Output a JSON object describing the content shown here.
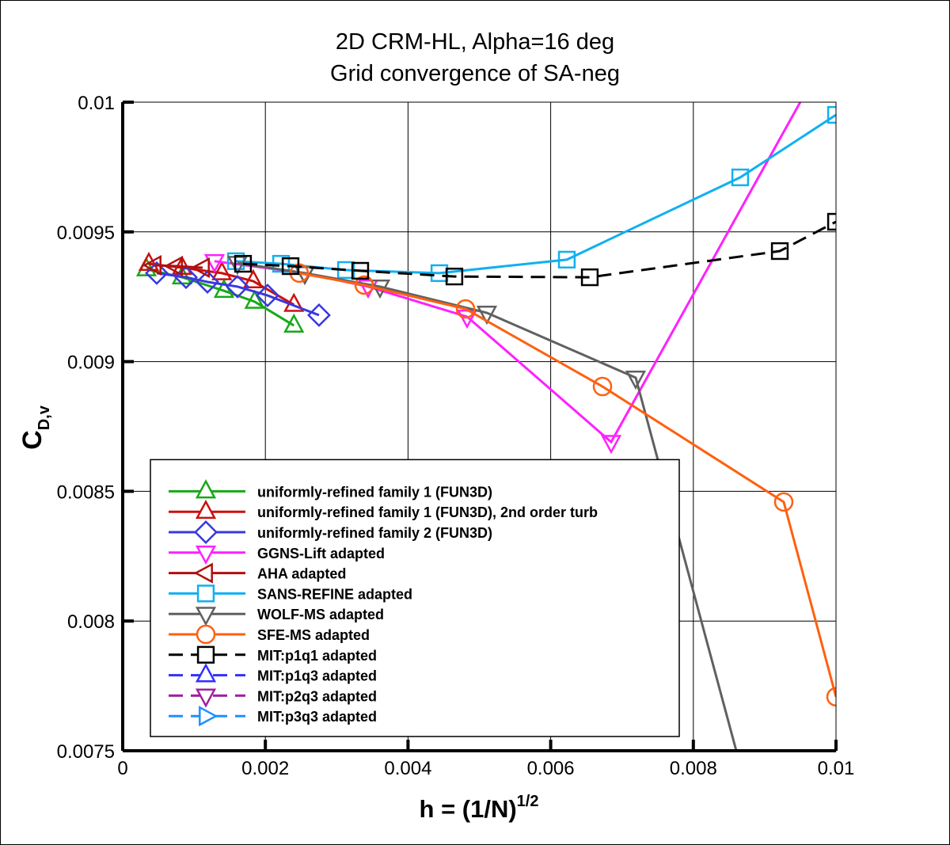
{
  "chart_data": {
    "type": "line",
    "title": "2D CRM-HL, Alpha=16 deg",
    "subtitle": "Grid convergence of SA-neg",
    "xlabel": {
      "text": "h = (1/N)",
      "superscript": "1/2"
    },
    "ylabel": {
      "text": "C",
      "subscript": "D,v"
    },
    "xlim": [
      0,
      0.01
    ],
    "xticks": [
      0,
      0.002,
      0.004,
      0.006,
      0.008,
      0.01
    ],
    "ylim": [
      0.0075,
      0.01
    ],
    "yticks": [
      0.0075,
      0.008,
      0.0085,
      0.009,
      0.0095,
      0.01
    ],
    "grid": true,
    "legend": "lower left",
    "series": [
      {
        "name": "uniformly-refined family 1 (FUN3D)",
        "color": "#18a818",
        "marker": "triangle-up",
        "dash": false,
        "x": [
          0.000333,
          0.000832,
          0.00142,
          0.00185,
          0.0024
        ],
        "values": [
          0.009356,
          0.009325,
          0.009273,
          0.009231,
          0.009139
        ]
      },
      {
        "name": "uniformly-refined family 1 (FUN3D), 2nd order turb",
        "color": "#cc1010",
        "marker": "triangle-up",
        "dash": false,
        "x": [
          0.000366,
          0.000832,
          0.00139,
          0.00183,
          0.0024
        ],
        "values": [
          0.009377,
          0.009362,
          0.009341,
          0.00931,
          0.009219
        ]
      },
      {
        "name": "uniformly-refined family 2 (FUN3D)",
        "color": "#3838e0",
        "marker": "diamond",
        "dash": false,
        "x": [
          0.000477,
          0.000888,
          0.001188,
          0.001609,
          0.002031,
          0.002752
        ],
        "values": [
          0.009341,
          0.009325,
          0.009307,
          0.009289,
          0.009255,
          0.009179
        ]
      },
      {
        "name": "GGNS-Lift adapted",
        "color": "#ff20ff",
        "marker": "triangle-down",
        "dash": false,
        "x": [
          0.001287,
          0.002553,
          0.003441,
          0.004828,
          0.006848,
          0.0096
        ],
        "values": [
          0.009387,
          0.009341,
          0.009289,
          0.009173,
          0.00869,
          0.01005
        ]
      },
      {
        "name": "AHA adapted",
        "color": "#b01010",
        "marker": "triangle-left",
        "dash": false,
        "x": [
          0.000444,
          0.000744,
          0.001121
        ],
        "values": [
          0.009371,
          0.009368,
          0.009362
        ]
      },
      {
        "name": "SANS-REFINE adapted",
        "color": "#10b0f0",
        "marker": "square",
        "dash": false,
        "x": [
          0.001587,
          0.00222,
          0.00313,
          0.00444,
          0.006226,
          0.008657,
          0.01
        ],
        "values": [
          0.009387,
          0.009377,
          0.009353,
          0.009341,
          0.009393,
          0.00971,
          0.009951
        ]
      },
      {
        "name": "WOLF-MS adapted",
        "color": "#606060",
        "marker": "triangle-down",
        "dash": false,
        "x": [
          0.001609,
          0.002553,
          0.003607,
          0.005105,
          0.007192,
          0.0087
        ],
        "values": [
          0.00938,
          0.009341,
          0.009289,
          0.009188,
          0.008938,
          0.0074
        ]
      },
      {
        "name": "SFE-MS adapted",
        "color": "#ff6010",
        "marker": "circle",
        "dash": false,
        "x": [
          0.002475,
          0.003385,
          0.004806,
          0.006726,
          0.009267,
          0.01
        ],
        "values": [
          0.009341,
          0.009295,
          0.009203,
          0.008904,
          0.008459,
          0.007708
        ]
      },
      {
        "name": "MIT:p1q1 adapted",
        "color": "#000000",
        "marker": "square",
        "dash": true,
        "x": [
          0.001687,
          0.002353,
          0.00333,
          0.00465,
          0.006548,
          0.009212,
          0.01
        ],
        "values": [
          0.009377,
          0.009368,
          0.00935,
          0.009328,
          0.009325,
          0.009426,
          0.009539
        ]
      },
      {
        "name": "MIT:p1q3 adapted",
        "color": "#3030ff",
        "marker": "triangle-up",
        "dash": true,
        "x": [],
        "values": []
      },
      {
        "name": "MIT:p2q3 adapted",
        "color": "#a020a0",
        "marker": "triangle-down",
        "dash": true,
        "x": [],
        "values": []
      },
      {
        "name": "MIT:p3q3 adapted",
        "color": "#1e90ff",
        "marker": "triangle-right",
        "dash": true,
        "x": [],
        "values": []
      }
    ]
  }
}
